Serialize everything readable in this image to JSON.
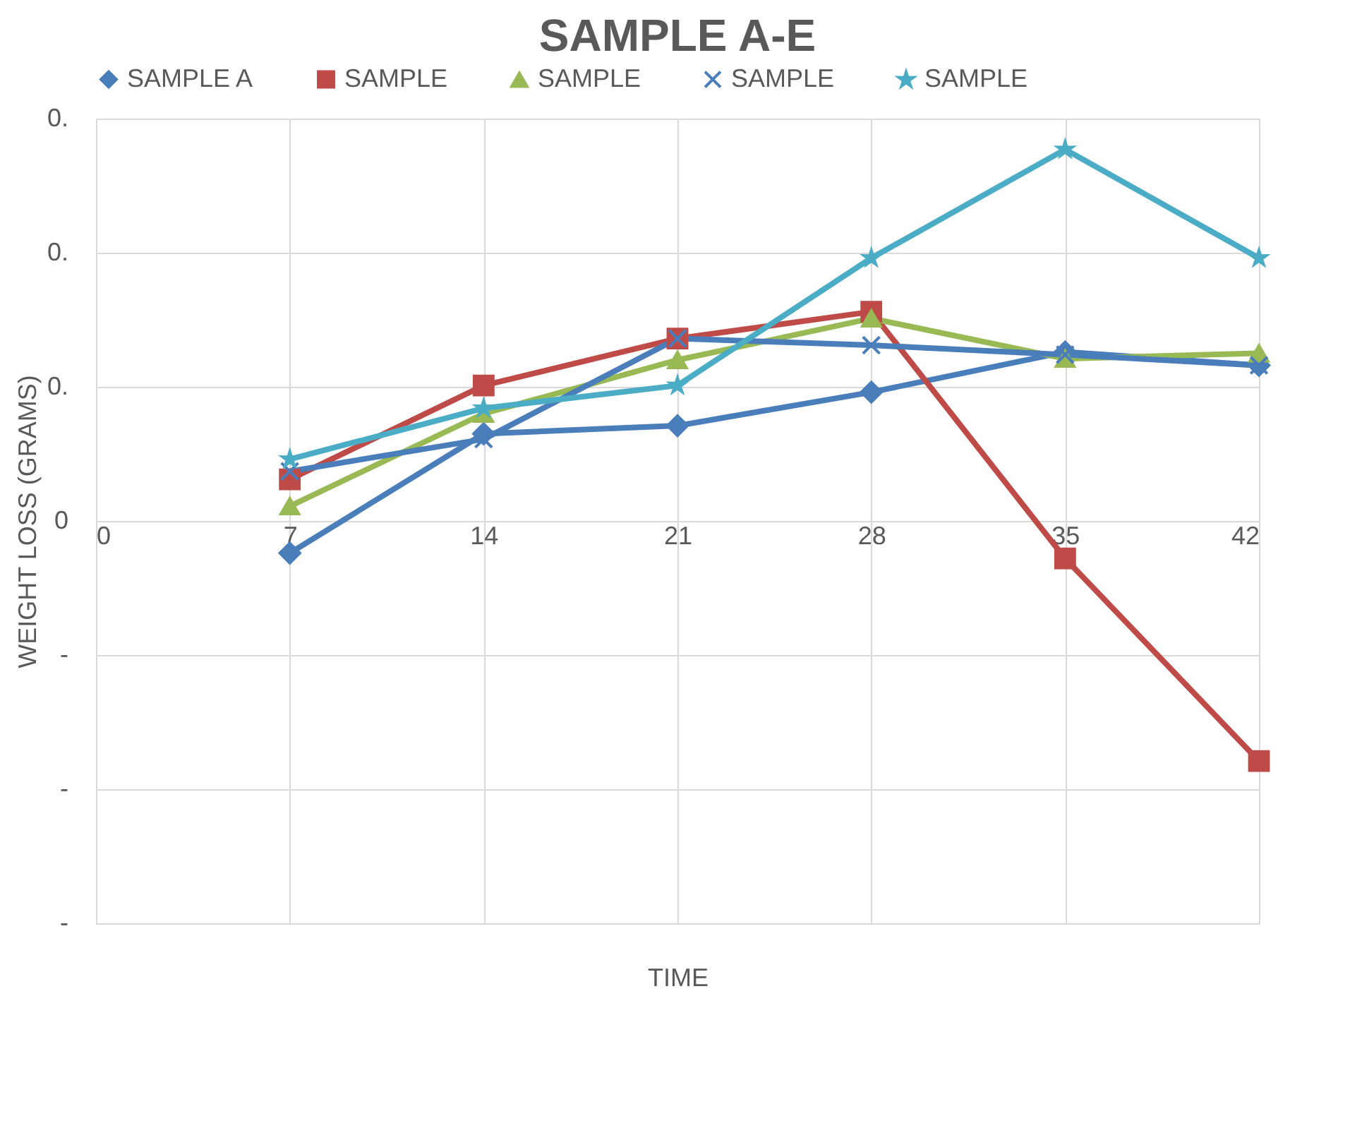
{
  "chart_data": {
    "type": "line",
    "title": "SAMPLE A-E",
    "xlabel": "TIME",
    "ylabel": "WEIGHT LOSS (GRAMS)",
    "x": [
      7,
      14,
      21,
      28,
      35,
      42
    ],
    "xlim": [
      0,
      42
    ],
    "xticks": [
      0,
      7,
      14,
      21,
      28,
      35,
      42
    ],
    "ylim": [
      -0.3,
      0.3
    ],
    "yticks": [
      {
        "value": 0.3,
        "label": "0."
      },
      {
        "value": 0.2,
        "label": "0."
      },
      {
        "value": 0.1,
        "label": "0."
      },
      0,
      {
        "value": -0.1,
        "label": "-"
      },
      {
        "value": -0.2,
        "label": "-"
      },
      {
        "value": -0.3,
        "label": "-"
      }
    ],
    "grid": true,
    "legend": "top",
    "line_style": "solid",
    "series": [
      {
        "name": "SAMPLE A",
        "color": "#4a7ebb",
        "marker": "diamond",
        "values": [
          -0.024,
          0.065,
          0.071,
          0.096,
          0.126,
          0.116
        ]
      },
      {
        "name": "SAMPLE",
        "color": "#be4b48",
        "marker": "square",
        "values": [
          0.031,
          0.101,
          0.136,
          0.156,
          -0.028,
          -0.179
        ]
      },
      {
        "name": "SAMPLE",
        "color": "#98b954",
        "marker": "triangle",
        "values": [
          0.011,
          0.08,
          0.12,
          0.151,
          0.121,
          0.125
        ]
      },
      {
        "name": "SAMPLE",
        "color": "#4a7ebb",
        "marker": "cross",
        "values": [
          0.037,
          0.061,
          0.136,
          0.131,
          0.124,
          0.116
        ]
      },
      {
        "name": "SAMPLE",
        "color": "#4bacc6",
        "marker": "star",
        "values": [
          0.046,
          0.084,
          0.101,
          0.196,
          0.277,
          0.196
        ]
      }
    ]
  }
}
